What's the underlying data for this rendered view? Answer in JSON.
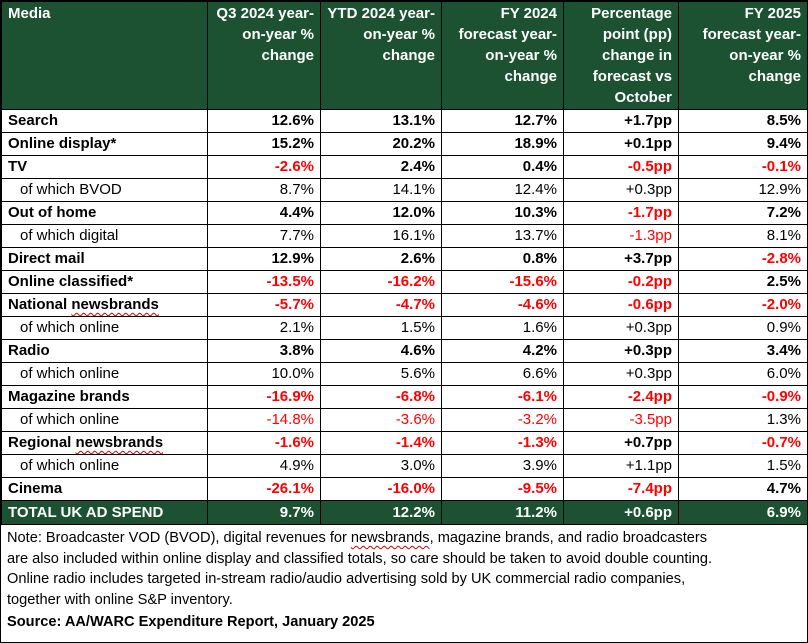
{
  "table": {
    "headers": [
      "Media",
      "Q3 2024 year-on-year % change",
      "YTD 2024 year-on-year % change",
      "FY 2024 forecast year-on-year % change",
      "Percentage point (pp) change in forecast vs October",
      "FY 2025 forecast year-on-year % change"
    ],
    "rows": [
      {
        "label": "Search",
        "type": "main",
        "values": [
          "12.6%",
          "13.1%",
          "12.7%",
          "+1.7pp",
          "8.5%"
        ]
      },
      {
        "label": "Online display*",
        "type": "main",
        "values": [
          "15.2%",
          "20.2%",
          "18.9%",
          "+0.1pp",
          "9.4%"
        ]
      },
      {
        "label": "TV",
        "type": "main",
        "values": [
          "-2.6%",
          "2.4%",
          "0.4%",
          "-0.5pp",
          "-0.1%"
        ]
      },
      {
        "label": "of which BVOD",
        "type": "sub",
        "values": [
          "8.7%",
          "14.1%",
          "12.4%",
          "+0.3pp",
          "12.9%"
        ]
      },
      {
        "label": "Out of home",
        "type": "main",
        "values": [
          "4.4%",
          "12.0%",
          "10.3%",
          "-1.7pp",
          "7.2%"
        ]
      },
      {
        "label": "of which digital",
        "type": "sub",
        "values": [
          "7.7%",
          "16.1%",
          "13.7%",
          "-1.3pp",
          "8.1%"
        ]
      },
      {
        "label": "Direct mail",
        "type": "main",
        "values": [
          "12.9%",
          "2.6%",
          "0.8%",
          "+3.7pp",
          "-2.8%"
        ]
      },
      {
        "label": "Online classified*",
        "type": "main",
        "values": [
          "-13.5%",
          "-16.2%",
          "-15.6%",
          "-0.2pp",
          "2.5%"
        ]
      },
      {
        "label": "National newsbrands",
        "type": "main",
        "values": [
          "-5.7%",
          "-4.7%",
          "-4.6%",
          "-0.6pp",
          "-2.0%"
        ]
      },
      {
        "label": "of which online",
        "type": "sub",
        "values": [
          "2.1%",
          "1.5%",
          "1.6%",
          "+0.3pp",
          "0.9%"
        ]
      },
      {
        "label": "Radio",
        "type": "main",
        "values": [
          "3.8%",
          "4.6%",
          "4.2%",
          "+0.3pp",
          "3.4%"
        ]
      },
      {
        "label": "of which online",
        "type": "sub",
        "values": [
          "10.0%",
          "5.6%",
          "6.6%",
          "+0.3pp",
          "6.0%"
        ]
      },
      {
        "label": "Magazine brands",
        "type": "main",
        "values": [
          "-16.9%",
          "-6.8%",
          "-6.1%",
          "-2.4pp",
          "-0.9%"
        ]
      },
      {
        "label": "of which online",
        "type": "sub",
        "values": [
          "-14.8%",
          "-3.6%",
          "-3.2%",
          "-3.5pp",
          "1.3%"
        ]
      },
      {
        "label": "Regional newsbrands",
        "type": "main",
        "values": [
          "-1.6%",
          "-1.4%",
          "-1.3%",
          "+0.7pp",
          "-0.7%"
        ]
      },
      {
        "label": "of which online",
        "type": "sub",
        "values": [
          "4.9%",
          "3.0%",
          "3.9%",
          "+1.1pp",
          "1.5%"
        ]
      },
      {
        "label": "Cinema",
        "type": "main",
        "values": [
          "-26.1%",
          "-16.0%",
          "-9.5%",
          "-7.4pp",
          "4.7%"
        ]
      }
    ],
    "total": {
      "label": "TOTAL UK AD SPEND",
      "values": [
        "9.7%",
        "12.2%",
        "11.2%",
        "+0.6pp",
        "6.9%"
      ]
    }
  },
  "note": [
    "Note: Broadcaster VOD (BVOD), digital revenues for newsbrands, magazine brands, and radio broadcasters",
    "are also included within online display and classified totals, so care should be taken to avoid double counting.",
    "Online radio includes targeted in-stream radio/audio advertising sold by UK commercial radio companies,",
    "together with online S&P inventory."
  ],
  "source": "Source: AA/WARC Expenditure Report, January 2025",
  "colors": {
    "header_bg": "#1c5232",
    "negative": "#ff0000"
  }
}
